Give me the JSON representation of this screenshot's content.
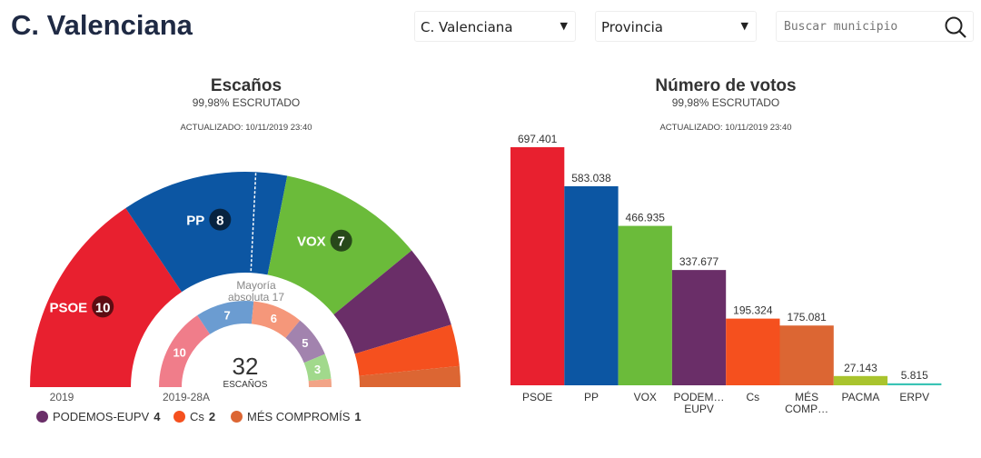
{
  "header": {
    "title": "C. Valenciana",
    "region_select": "C. Valenciana",
    "province_select": "Provincia",
    "search_placeholder": "Buscar municipio"
  },
  "seats": {
    "title": "Escaños",
    "scrutiny": "99,98% ESCRUTADO",
    "updated": "ACTUALIZADO: 10/11/2019 23:40",
    "total": "32",
    "total_label": "ESCAÑOS",
    "majority": "Mayoría absoluta 17",
    "year_label": "2019",
    "prev_label": "2019-28A",
    "parties": [
      {
        "name": "PSOE",
        "seats": 10,
        "color": "#e8202f"
      },
      {
        "name": "PP",
        "seats": 8,
        "color": "#0c56a3"
      },
      {
        "name": "VOX",
        "seats": 7,
        "color": "#6bbb3a"
      },
      {
        "name": "PODEMOS-EUPV",
        "seats": 4,
        "color": "#6a2e68"
      },
      {
        "name": "Cs",
        "seats": 2,
        "color": "#f5501e"
      },
      {
        "name": "MÉS COMPROMÍS",
        "seats": 1,
        "color": "#dc6633"
      }
    ],
    "previous": [
      {
        "seats": 10,
        "color": "#f07d8a"
      },
      {
        "seats": 7,
        "color": "#6b9cd1"
      },
      {
        "seats": 6,
        "color": "#f5977a"
      },
      {
        "seats": 5,
        "color": "#a283ae"
      },
      {
        "seats": 3,
        "color": "#a1d98c"
      },
      {
        "seats": 1,
        "color": "#f2a487"
      }
    ],
    "badge_colors": {
      "PSOE": "#5e0c12",
      "PP": "#07233f",
      "VOX": "#27481a"
    }
  },
  "chart_data": {
    "type": "bar",
    "title": "Número de votos",
    "subtitle": "99,98% ESCRUTADO",
    "updated": "ACTUALIZADO: 10/11/2019 23:40",
    "categories": [
      "PSOE",
      "PP",
      "VOX",
      "PODEM… EUPV",
      "Cs",
      "MÉS COMP…",
      "PACMA",
      "ERPV"
    ],
    "values": [
      697401,
      583038,
      466935,
      337677,
      195324,
      175081,
      27143,
      5815
    ],
    "labels": [
      "697.401",
      "583.038",
      "466.935",
      "337.677",
      "195.324",
      "175.081",
      "27.143",
      "5.815"
    ],
    "colors": [
      "#e8202f",
      "#0c56a3",
      "#6bbb3a",
      "#6a2e68",
      "#f5501e",
      "#dc6633",
      "#a9c42d",
      "#3ac4b5"
    ],
    "ylim": [
      0,
      700000
    ],
    "grid": false
  }
}
